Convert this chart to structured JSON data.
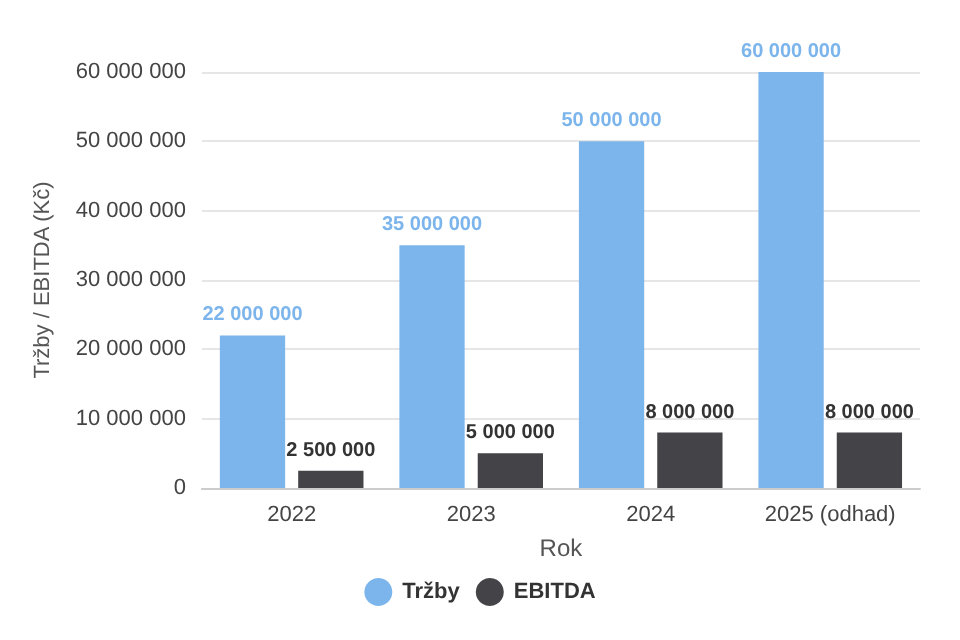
{
  "chart_data": {
    "type": "bar",
    "xlabel": "Rok",
    "ylabel": "Tržby / EBITDA (Kč)",
    "categories": [
      "2022",
      "2023",
      "2024",
      "2025 (odhad)"
    ],
    "series": [
      {
        "name": "Tržby",
        "color": "#7cb5ec",
        "values": [
          22000000,
          35000000,
          50000000,
          60000000
        ],
        "value_labels": [
          "22 000 000",
          "35 000 000",
          "50 000 000",
          "60 000 000"
        ]
      },
      {
        "name": "EBITDA",
        "color": "#434348",
        "values": [
          2500000,
          5000000,
          8000000,
          8000000
        ],
        "value_labels": [
          "2 500 000",
          "5 000 000",
          "8 000 000",
          "8 000 000"
        ]
      }
    ],
    "ylim": [
      0,
      60000000
    ],
    "yticks": [
      {
        "value": 0,
        "label": "0"
      },
      {
        "value": 10000000,
        "label": "10 000 000"
      },
      {
        "value": 20000000,
        "label": "20 000 000"
      },
      {
        "value": 30000000,
        "label": "30 000 000"
      },
      {
        "value": 40000000,
        "label": "40 000 000"
      },
      {
        "value": 50000000,
        "label": "50 000 000"
      },
      {
        "value": 60000000,
        "label": "60 000 000"
      }
    ],
    "grid": "y",
    "legend": "bottom"
  }
}
